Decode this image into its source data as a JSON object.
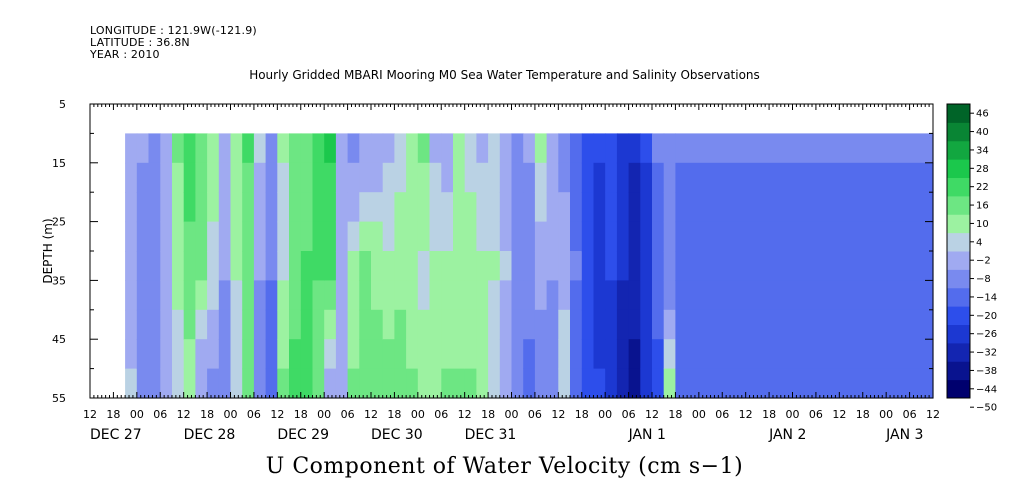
{
  "meta": {
    "longitude": "LONGITUDE : 121.9W(-121.9)",
    "latitude": "LATITUDE : 36.8N",
    "year": "YEAR : 2010"
  },
  "chart_data": {
    "type": "heatmap",
    "title": "Hourly Gridded MBARI Mooring M0 Sea Water Temperature and Salinity Observations",
    "xlabel": "U Component of Water Velocity (cm s−1)",
    "ylabel": "DEPTH (m)",
    "y_range": [
      5,
      55
    ],
    "y_inverted": true,
    "y_ticks": [
      5,
      15,
      25,
      35,
      45,
      55
    ],
    "data_depth_range": [
      10,
      55
    ],
    "x_range_hours": [
      0,
      216
    ],
    "x_ticks_hours": [
      0,
      6,
      12,
      18,
      24,
      30,
      36,
      42,
      48,
      54,
      60,
      66,
      72,
      78,
      84,
      90,
      96,
      102,
      108,
      114,
      120,
      126,
      132,
      138,
      144,
      150,
      156,
      162,
      168,
      174,
      180,
      186,
      192,
      198,
      204,
      210,
      216
    ],
    "x_tick_labels": [
      "12",
      "18",
      "00",
      "06",
      "12",
      "18",
      "00",
      "06",
      "12",
      "18",
      "00",
      "06",
      "12",
      "18",
      "00",
      "06",
      "12",
      "18",
      "00",
      "06",
      "12",
      "18",
      "00",
      "06",
      "12",
      "18",
      "00",
      "06",
      "12",
      "18",
      "00",
      "06",
      "12",
      "18",
      "00",
      "06",
      "12"
    ],
    "day_labels": [
      {
        "label": "DEC 27",
        "hour": 0
      },
      {
        "label": "DEC 28",
        "hour": 24
      },
      {
        "label": "DEC 29",
        "hour": 48
      },
      {
        "label": "DEC 30",
        "hour": 72
      },
      {
        "label": "DEC 31",
        "hour": 96
      },
      {
        "label": "JAN  1",
        "hour": 138
      },
      {
        "label": "JAN  2",
        "hour": 174
      },
      {
        "label": "JAN  3",
        "hour": 204
      }
    ],
    "data_start_hour": 9,
    "colorbar_levels": [
      -50,
      -44,
      -38,
      -32,
      -26,
      -20,
      -14,
      -8,
      -2,
      4,
      10,
      16,
      22,
      28,
      34,
      40,
      46
    ],
    "colorbar_labels": [
      "46",
      "40",
      "34",
      "28",
      "22",
      "16",
      "10",
      "4",
      "−2",
      "−8",
      "−14",
      "−20",
      "−26",
      "−32",
      "−38",
      "−44",
      "−50"
    ],
    "columns_hourly_surface_to_bottom": [
      {
        "hour": 9,
        "values": [
          -6,
          -4,
          -2
        ]
      },
      {
        "hour": 12,
        "values": [
          -8,
          -10,
          -12
        ]
      },
      {
        "hour": 15,
        "values": [
          -10,
          -12,
          -14
        ]
      },
      {
        "hour": 18,
        "values": [
          -6,
          -4,
          -6
        ]
      },
      {
        "hour": 21,
        "values": [
          10,
          6,
          -2
        ]
      },
      {
        "hour": 24,
        "values": [
          20,
          14,
          6
        ]
      },
      {
        "hour": 27,
        "values": [
          14,
          10,
          -8
        ]
      },
      {
        "hour": 30,
        "values": [
          6,
          2,
          -10
        ]
      },
      {
        "hour": 33,
        "values": [
          -4,
          -8,
          -10
        ]
      },
      {
        "hour": 36,
        "values": [
          8,
          4,
          -2
        ]
      },
      {
        "hour": 39,
        "values": [
          16,
          12,
          10
        ]
      },
      {
        "hour": 42,
        "values": [
          -2,
          -8,
          -12
        ]
      },
      {
        "hour": 45,
        "values": [
          -10,
          -14,
          -16
        ]
      },
      {
        "hour": 48,
        "values": [
          4,
          2,
          10
        ]
      },
      {
        "hour": 51,
        "values": [
          14,
          12,
          18
        ]
      },
      {
        "hour": 54,
        "values": [
          12,
          16,
          20
        ]
      },
      {
        "hour": 57,
        "values": [
          18,
          16,
          10
        ]
      },
      {
        "hour": 60,
        "values": [
          22,
          16,
          -4
        ]
      },
      {
        "hour": 63,
        "values": [
          -6,
          -4,
          -8
        ]
      },
      {
        "hour": 66,
        "values": [
          -10,
          4,
          10
        ]
      },
      {
        "hour": 69,
        "values": [
          -8,
          10,
          14
        ]
      },
      {
        "hour": 72,
        "values": [
          -6,
          8,
          14
        ]
      },
      {
        "hour": 75,
        "values": [
          -4,
          6,
          12
        ]
      },
      {
        "hour": 78,
        "values": [
          2,
          8,
          12
        ]
      },
      {
        "hour": 81,
        "values": [
          8,
          4,
          10
        ]
      },
      {
        "hour": 84,
        "values": [
          10,
          2,
          6
        ]
      },
      {
        "hour": 87,
        "values": [
          -4,
          4,
          8
        ]
      },
      {
        "hour": 90,
        "values": [
          -8,
          6,
          10
        ]
      },
      {
        "hour": 93,
        "values": [
          4,
          8,
          10
        ]
      },
      {
        "hour": 96,
        "values": [
          2,
          6,
          10
        ]
      },
      {
        "hour": 99,
        "values": [
          -4,
          4,
          8
        ]
      },
      {
        "hour": 102,
        "values": [
          2,
          4,
          2
        ]
      },
      {
        "hour": 105,
        "values": [
          -6,
          -2,
          -8
        ]
      },
      {
        "hour": 108,
        "values": [
          -10,
          -12,
          -14
        ]
      },
      {
        "hour": 111,
        "values": [
          -8,
          -10,
          -16
        ]
      },
      {
        "hour": 114,
        "values": [
          4,
          -6,
          -12
        ]
      },
      {
        "hour": 117,
        "values": [
          -4,
          -8,
          -10
        ]
      },
      {
        "hour": 120,
        "values": [
          -10,
          -6,
          2
        ]
      },
      {
        "hour": 123,
        "values": [
          -20,
          -14,
          -16
        ]
      },
      {
        "hour": 126,
        "values": [
          -24,
          -26,
          -22
        ]
      },
      {
        "hour": 129,
        "values": [
          -26,
          -28,
          -26
        ]
      },
      {
        "hour": 132,
        "values": [
          -24,
          -26,
          -28
        ]
      },
      {
        "hour": 135,
        "values": [
          -28,
          -32,
          -38
        ]
      },
      {
        "hour": 138,
        "values": [
          -32,
          -36,
          -40
        ]
      },
      {
        "hour": 141,
        "values": [
          -26,
          -28,
          -32
        ]
      },
      {
        "hour": 144,
        "values": [
          -14,
          -18,
          -22
        ]
      },
      {
        "hour": 147,
        "values": [
          -10,
          -14,
          6
        ]
      },
      {
        "hour": 150,
        "values": [
          -14,
          -16,
          -20
        ]
      }
    ]
  }
}
